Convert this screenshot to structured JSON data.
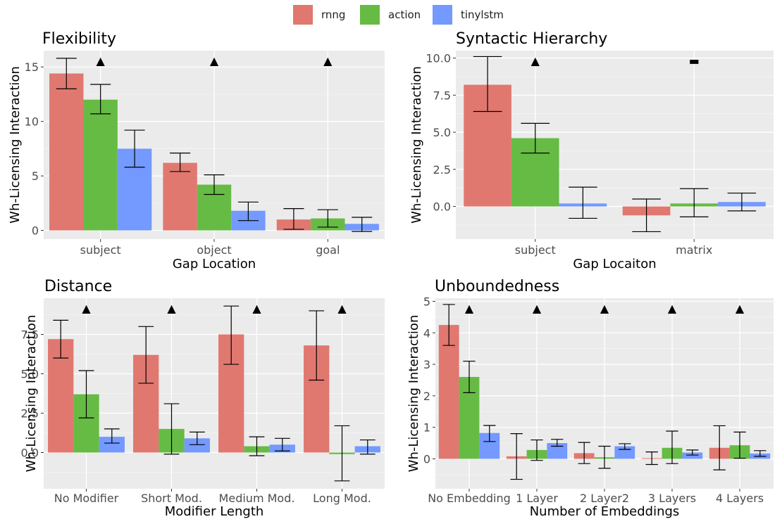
{
  "legend": {
    "series": [
      {
        "name": "rnng",
        "color": "#E07870"
      },
      {
        "name": "action",
        "color": "#66BB44"
      },
      {
        "name": "tinylstm",
        "color": "#7499FF"
      }
    ]
  },
  "chart_data": [
    {
      "type": "bar",
      "title": "Flexibility",
      "xlabel": "Gap Location",
      "ylabel": "Wh-Licensing Interaction",
      "ylim": [
        -0.8,
        16.5
      ],
      "yticks": [
        0,
        5,
        10,
        15
      ],
      "ytick_labels": [
        "0",
        "5",
        "10",
        "15"
      ],
      "categories": [
        "subject",
        "object",
        "goal"
      ],
      "series": [
        {
          "name": "rnng",
          "values": [
            14.4,
            6.2,
            1.0
          ],
          "err_low": [
            13.0,
            5.4,
            0.1
          ],
          "err_high": [
            15.8,
            7.1,
            2.0
          ]
        },
        {
          "name": "action",
          "values": [
            12.0,
            4.2,
            1.1
          ],
          "err_low": [
            10.7,
            3.3,
            0.3
          ],
          "err_high": [
            13.4,
            5.1,
            1.9
          ]
        },
        {
          "name": "tinylstm",
          "values": [
            7.5,
            1.8,
            0.6
          ],
          "err_low": [
            5.8,
            0.9,
            -0.1
          ],
          "err_high": [
            9.2,
            2.6,
            1.2
          ]
        }
      ],
      "markers": [
        {
          "category": "subject",
          "symbol": "▲"
        },
        {
          "category": "object",
          "symbol": "▲"
        },
        {
          "category": "goal",
          "symbol": "▲"
        }
      ]
    },
    {
      "type": "bar",
      "title": "Syntactic Hierarchy",
      "xlabel": "Gap Locaiton",
      "ylabel": "Wh-Licensing Interaction",
      "ylim": [
        -2.2,
        10.5
      ],
      "yticks": [
        0,
        2.5,
        5,
        7.5,
        10
      ],
      "ytick_labels": [
        "0.0",
        "2.5",
        "5.0",
        "7.5",
        "10.0"
      ],
      "categories": [
        "subject",
        "matrix"
      ],
      "series": [
        {
          "name": "rnng",
          "values": [
            8.2,
            -0.6
          ],
          "err_low": [
            6.4,
            -1.7
          ],
          "err_high": [
            10.1,
            0.5
          ]
        },
        {
          "name": "action",
          "values": [
            4.6,
            0.2
          ],
          "err_low": [
            3.6,
            -0.7
          ],
          "err_high": [
            5.6,
            1.2
          ]
        },
        {
          "name": "tinylstm",
          "values": [
            0.2,
            0.3
          ],
          "err_low": [
            -0.8,
            -0.3
          ],
          "err_high": [
            1.3,
            0.9
          ]
        }
      ],
      "markers": [
        {
          "category": "subject",
          "symbol": "▲"
        },
        {
          "category": "matrix",
          "symbol": "▬"
        }
      ]
    },
    {
      "type": "bar",
      "title": "Distance",
      "xlabel": "Modifier Length",
      "ylabel": "Wh-Licensing Interaction",
      "ylim": [
        -2.3,
        9.8
      ],
      "yticks": [
        0,
        2.5,
        5,
        7.5
      ],
      "ytick_labels": [
        "0.0",
        "2.5",
        "5.0",
        "7.5"
      ],
      "categories": [
        "No Modifier",
        "Short Mod.",
        "Medium Mod.",
        "Long Mod."
      ],
      "series": [
        {
          "name": "rnng",
          "values": [
            7.2,
            6.2,
            7.5,
            6.8
          ],
          "err_low": [
            6.0,
            4.4,
            5.6,
            4.6
          ],
          "err_high": [
            8.4,
            8.0,
            9.3,
            9.0
          ]
        },
        {
          "name": "action",
          "values": [
            3.7,
            1.5,
            0.4,
            -0.1
          ],
          "err_low": [
            2.2,
            -0.1,
            -0.2,
            -1.8
          ],
          "err_high": [
            5.2,
            3.1,
            1.0,
            1.7
          ]
        },
        {
          "name": "tinylstm",
          "values": [
            1.0,
            0.9,
            0.5,
            0.4
          ],
          "err_low": [
            0.6,
            0.5,
            0.1,
            -0.1
          ],
          "err_high": [
            1.5,
            1.3,
            0.9,
            0.8
          ]
        }
      ],
      "markers": [
        {
          "category": "No Modifier",
          "symbol": "▲"
        },
        {
          "category": "Short Mod.",
          "symbol": "▲"
        },
        {
          "category": "Medium Mod.",
          "symbol": "▲"
        },
        {
          "category": "Long Mod.",
          "symbol": "▲"
        }
      ]
    },
    {
      "type": "bar",
      "title": "Unboundedness",
      "xlabel": "Number of Embeddings",
      "ylabel": "Wh-Licensing Interaction",
      "ylim": [
        -0.95,
        5.1
      ],
      "yticks": [
        0,
        1,
        2,
        3,
        4,
        5
      ],
      "ytick_labels": [
        "0",
        "1",
        "2",
        "3",
        "4",
        "5"
      ],
      "categories": [
        "No Embedding",
        "1 Layer",
        "2 Layer2",
        "3 Layers",
        "4 Layers"
      ],
      "series": [
        {
          "name": "rnng",
          "values": [
            4.25,
            0.08,
            0.18,
            0.02,
            0.35
          ],
          "err_low": [
            3.6,
            -0.65,
            -0.15,
            -0.18,
            -0.35
          ],
          "err_high": [
            4.9,
            0.8,
            0.52,
            0.22,
            1.05
          ]
        },
        {
          "name": "action",
          "values": [
            2.6,
            0.28,
            0.05,
            0.35,
            0.43
          ],
          "err_low": [
            2.1,
            -0.05,
            -0.3,
            -0.15,
            0.02
          ],
          "err_high": [
            3.1,
            0.6,
            0.4,
            0.88,
            0.85
          ]
        },
        {
          "name": "tinylstm",
          "values": [
            0.82,
            0.5,
            0.4,
            0.2,
            0.17
          ],
          "err_low": [
            0.55,
            0.4,
            0.3,
            0.12,
            0.08
          ],
          "err_high": [
            1.06,
            0.62,
            0.48,
            0.28,
            0.26
          ]
        }
      ],
      "markers": [
        {
          "category": "No Embedding",
          "symbol": "▲"
        },
        {
          "category": "1 Layer",
          "symbol": "▲"
        },
        {
          "category": "2 Layer2",
          "symbol": "▲"
        },
        {
          "category": "3 Layers",
          "symbol": "▲"
        },
        {
          "category": "4 Layers",
          "symbol": "▲"
        }
      ]
    }
  ]
}
